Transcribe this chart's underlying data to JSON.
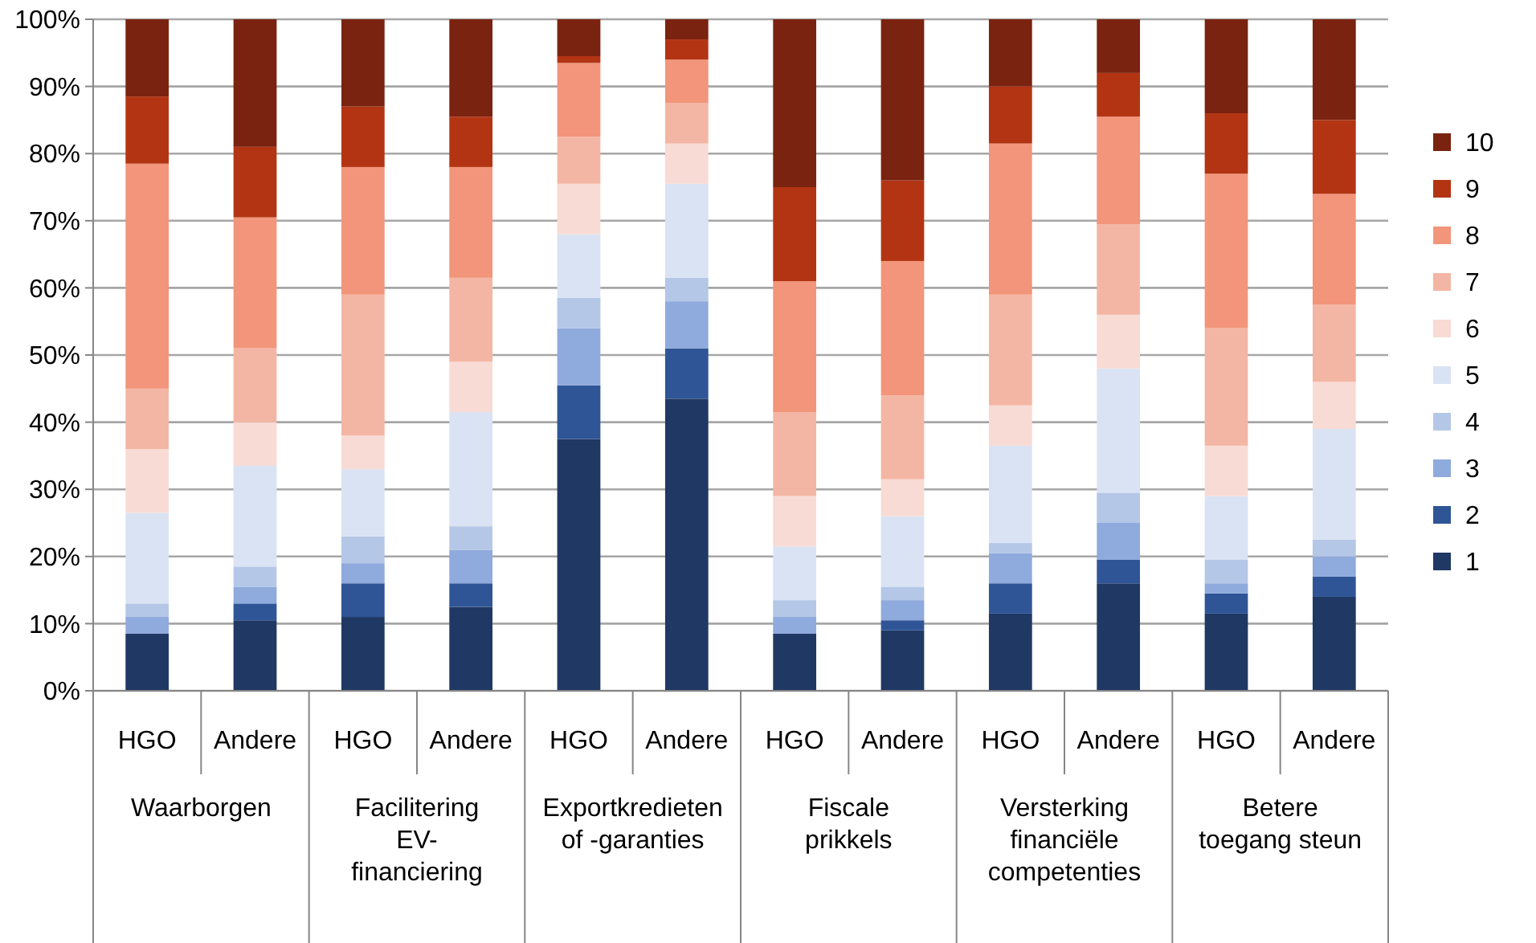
{
  "chart_data": {
    "type": "bar",
    "stacked": true,
    "categories": [
      "HGO",
      "Andere",
      "HGO",
      "Andere",
      "HGO",
      "Andere",
      "HGO",
      "Andere",
      "HGO",
      "Andere",
      "HGO",
      "Andere"
    ],
    "annotations": [
      "Waarborgen",
      "Facilitering EV-financiering",
      "Exportkredieten of -garanties",
      "Fiscale prikkels",
      "Versterking financiële competenties",
      "Betere toegang steun"
    ],
    "series": [
      {
        "name": "1",
        "color": "#203864",
        "values": [
          8.5,
          10.5,
          11,
          12.5,
          37.5,
          43.5,
          8.5,
          9,
          11.5,
          16,
          11.5,
          14
        ]
      },
      {
        "name": "2",
        "color": "#2f5597",
        "values": [
          0,
          2.5,
          5,
          3.5,
          8,
          7.5,
          0,
          1.5,
          4.5,
          3.5,
          3,
          3
        ]
      },
      {
        "name": "3",
        "color": "#8faadc",
        "values": [
          2.5,
          2.5,
          3,
          5,
          8.5,
          7,
          2.5,
          3,
          4.5,
          5.5,
          1.5,
          3
        ]
      },
      {
        "name": "4",
        "color": "#b4c7e7",
        "values": [
          2,
          3,
          4,
          3.5,
          4.5,
          3.5,
          2.5,
          2,
          1.5,
          4.5,
          3.5,
          2.5
        ]
      },
      {
        "name": "5",
        "color": "#dae3f3",
        "values": [
          13.5,
          15,
          10,
          17,
          9.5,
          14,
          8,
          10.5,
          14.5,
          18.5,
          9.5,
          16.5
        ]
      },
      {
        "name": "6",
        "color": "#f8dbd4",
        "values": [
          9.5,
          6.5,
          5,
          7.5,
          7.5,
          6,
          7.5,
          5.5,
          6,
          8,
          7.5,
          7
        ]
      },
      {
        "name": "7",
        "color": "#f4b6a4",
        "values": [
          9,
          11,
          21,
          12.5,
          7,
          6,
          12.5,
          12.5,
          16.5,
          13.5,
          17.5,
          11.5
        ]
      },
      {
        "name": "8",
        "color": "#f2957a",
        "values": [
          33.5,
          19.5,
          19,
          16.5,
          11,
          6.5,
          19.5,
          20,
          22.5,
          16,
          23,
          16.5
        ]
      },
      {
        "name": "9",
        "color": "#b33413",
        "values": [
          10,
          10.5,
          9,
          7.5,
          1,
          3,
          14,
          12,
          8.5,
          6.5,
          9,
          11
        ]
      },
      {
        "name": "10",
        "color": "#7a2310",
        "values": [
          11.5,
          19,
          13,
          14.5,
          5.5,
          3,
          25,
          24,
          10,
          8,
          14,
          15
        ]
      }
    ],
    "ylim": [
      0,
      100
    ],
    "yticks": [
      {
        "value": 0,
        "label": "0%"
      },
      {
        "value": 10,
        "label": "10%"
      },
      {
        "value": 20,
        "label": "20%"
      },
      {
        "value": 30,
        "label": "30%"
      },
      {
        "value": 40,
        "label": "40%"
      },
      {
        "value": 50,
        "label": "50%"
      },
      {
        "value": 60,
        "label": "60%"
      },
      {
        "value": 70,
        "label": "70%"
      },
      {
        "value": 80,
        "label": "80%"
      },
      {
        "value": 90,
        "label": "90%"
      },
      {
        "value": 100,
        "label": "100%"
      }
    ],
    "grid": "y",
    "legend": "right"
  }
}
